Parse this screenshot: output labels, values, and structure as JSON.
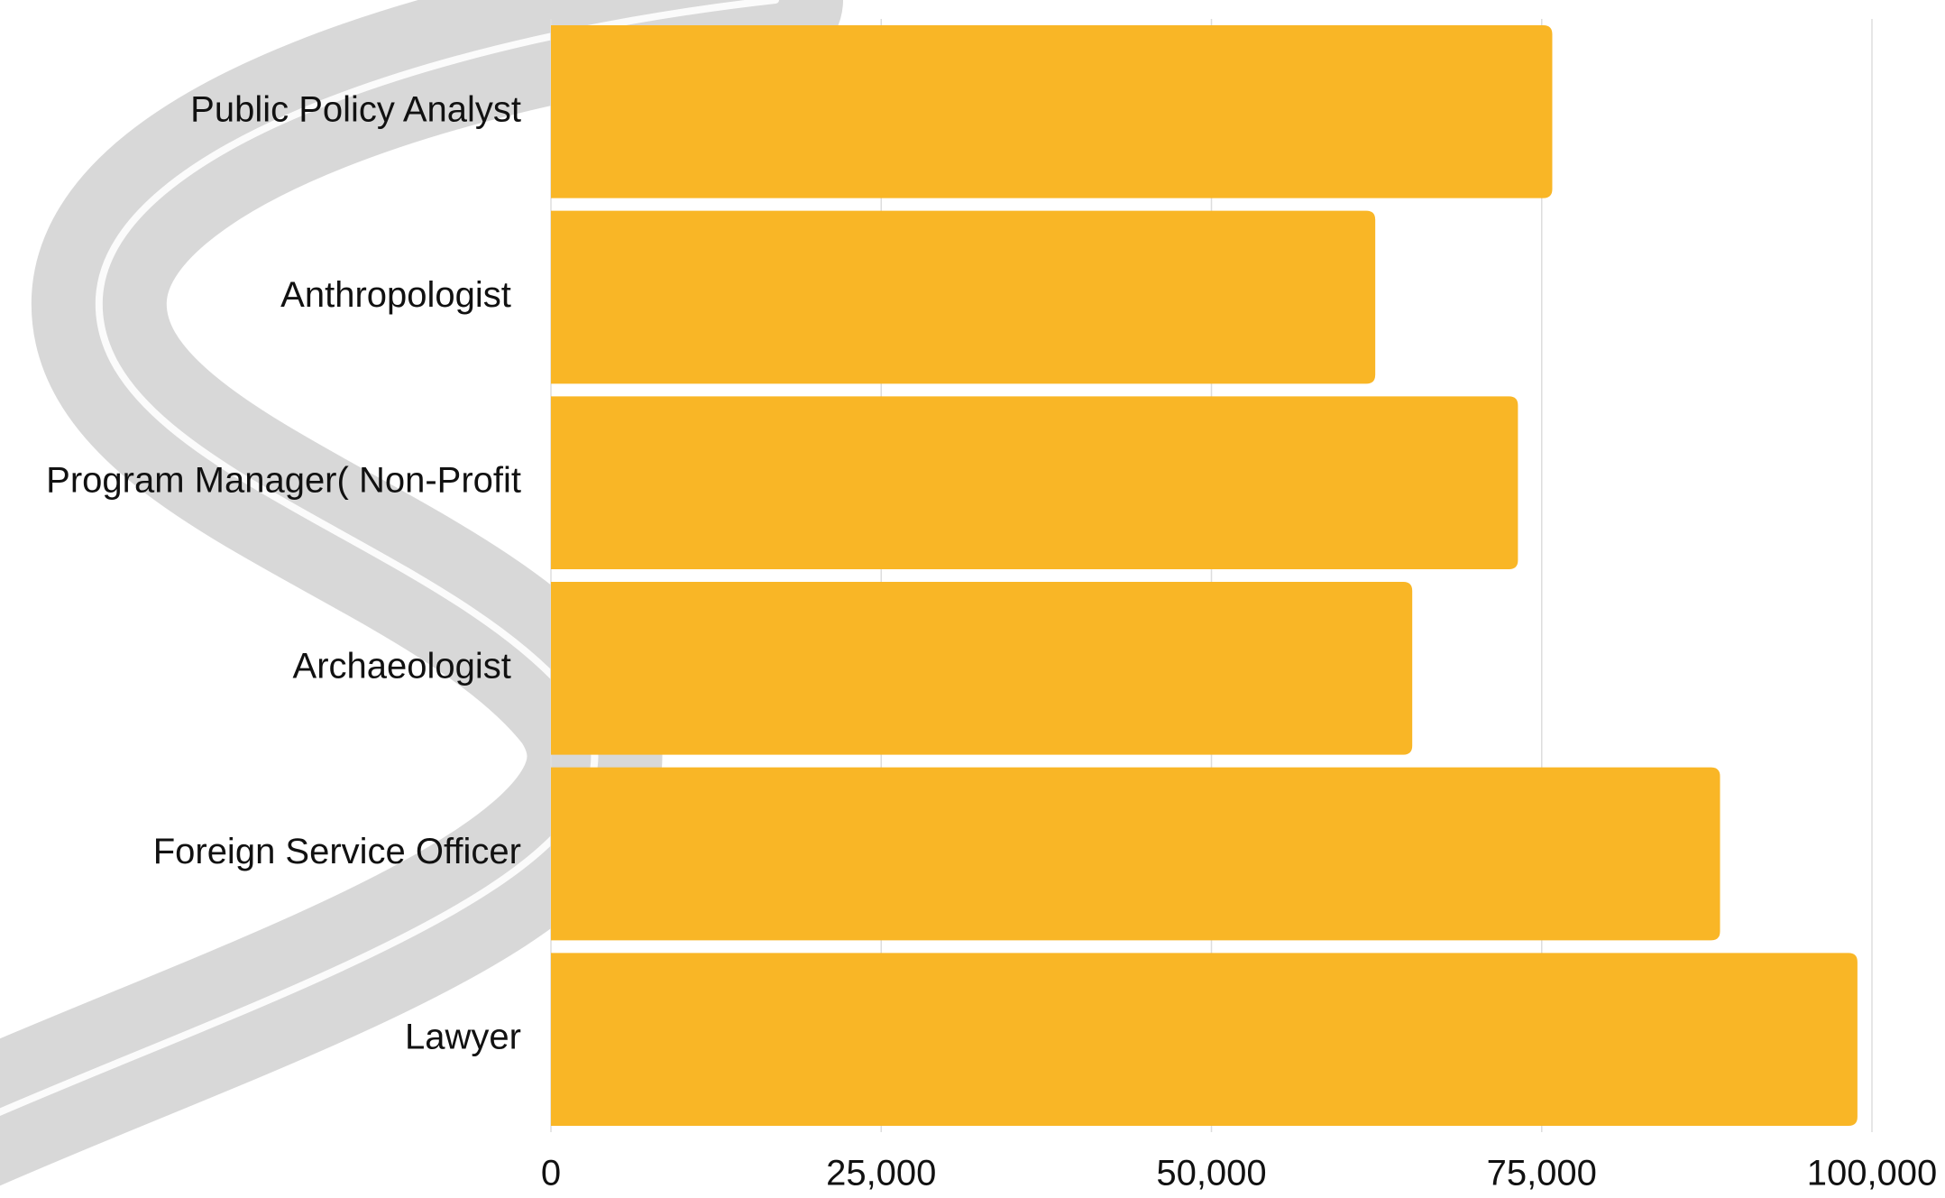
{
  "chart_data": {
    "type": "barh",
    "categories": [
      "Public Policy Analyst",
      "Anthropologist ",
      "Program Manager( Non-Profit",
      "Archaeologist ",
      "Foreign Service Officer",
      "Lawyer"
    ],
    "values": [
      75800,
      62400,
      73200,
      65200,
      88500,
      98900
    ],
    "color": "#f9b626",
    "xlim": [
      0,
      100000
    ],
    "xticks": [
      0,
      {
        "value": 25000,
        "label": "25,000"
      },
      {
        "value": 50000,
        "label": "50,000"
      },
      {
        "value": 75000,
        "label": "75,000"
      },
      {
        "value": 100000,
        "label": "100,000"
      }
    ],
    "grid": true
  }
}
